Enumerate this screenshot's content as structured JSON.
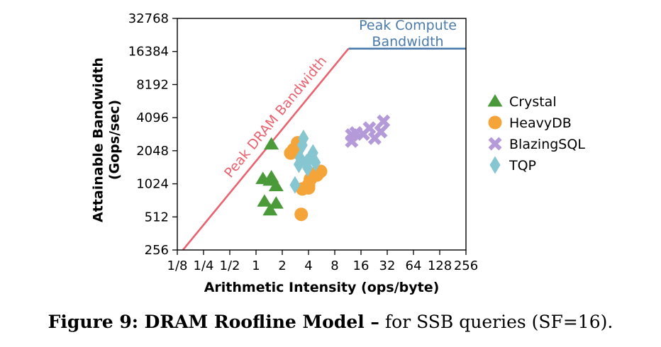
{
  "chart_data": {
    "type": "scatter",
    "xlabel": "Arithmetic Intensity (ops/byte)",
    "ylabel_lines": [
      "Attainable Bandwidth",
      "(Gops/sec)"
    ],
    "x_scale": "log2",
    "y_scale": "log2",
    "xlim": [
      0.125,
      256
    ],
    "ylim": [
      256,
      32768
    ],
    "x_ticks": [
      {
        "value": 0.125,
        "label": "1/8"
      },
      {
        "value": 0.25,
        "label": "1/4"
      },
      {
        "value": 0.5,
        "label": "1/2"
      },
      {
        "value": 1,
        "label": "1"
      },
      {
        "value": 2,
        "label": "2"
      },
      {
        "value": 4,
        "label": "4"
      },
      {
        "value": 8,
        "label": "8"
      },
      {
        "value": 16,
        "label": "16"
      },
      {
        "value": 32,
        "label": "32"
      },
      {
        "value": 64,
        "label": "64"
      },
      {
        "value": 128,
        "label": "128"
      },
      {
        "value": 256,
        "label": "256"
      }
    ],
    "y_ticks": [
      {
        "value": 256,
        "label": "256"
      },
      {
        "value": 512,
        "label": "512"
      },
      {
        "value": 1024,
        "label": "1024"
      },
      {
        "value": 2048,
        "label": "2048"
      },
      {
        "value": 4096,
        "label": "4096"
      },
      {
        "value": 8192,
        "label": "8192"
      },
      {
        "value": 16384,
        "label": "16384"
      },
      {
        "value": 32768,
        "label": "32768"
      }
    ],
    "grid": false,
    "legend_position": "outside-right",
    "lines": [
      {
        "name": "Peak DRAM Bandwidth",
        "color": "#e8636f",
        "points": [
          [
            0.145,
            256
          ],
          [
            11.5,
            17400
          ]
        ]
      },
      {
        "name": "Peak Compute Bandwidth",
        "label_lines": [
          "Peak Compute",
          "Bandwidth"
        ],
        "color": "#4a7aaa",
        "points": [
          [
            11.5,
            17400
          ],
          [
            256,
            17400
          ]
        ]
      }
    ],
    "series": [
      {
        "name": "Crystal",
        "marker": "triangle",
        "color": "#4a9a3a",
        "points": [
          [
            1.5,
            2350
          ],
          [
            1.2,
            1140
          ],
          [
            1.5,
            1180
          ],
          [
            1.45,
            1100
          ],
          [
            1.7,
            980
          ],
          [
            1.25,
            710
          ],
          [
            1.7,
            680
          ],
          [
            1.45,
            590
          ]
        ]
      },
      {
        "name": "HeavyDB",
        "marker": "circle",
        "color": "#f5a43a",
        "points": [
          [
            3.0,
            2420
          ],
          [
            2.7,
            2100
          ],
          [
            2.9,
            2000
          ],
          [
            2.5,
            1950
          ],
          [
            5.5,
            1330
          ],
          [
            4.5,
            1260
          ],
          [
            5.0,
            1230
          ],
          [
            4.2,
            1130
          ],
          [
            4.0,
            1000
          ],
          [
            4.0,
            940
          ],
          [
            3.4,
            920
          ],
          [
            3.3,
            540
          ]
        ]
      },
      {
        "name": "BlazingSQL",
        "marker": "x",
        "color": "#b49ad8",
        "points": [
          [
            29,
            3800
          ],
          [
            20,
            3300
          ],
          [
            27,
            3050
          ],
          [
            14,
            2980
          ],
          [
            17,
            2900
          ],
          [
            12.5,
            2850
          ],
          [
            23,
            2660
          ],
          [
            12.5,
            2500
          ]
        ]
      },
      {
        "name": "TQP",
        "marker": "diamond",
        "color": "#86c6d0",
        "points": [
          [
            3.5,
            2650
          ],
          [
            3.4,
            2300
          ],
          [
            4.5,
            1960
          ],
          [
            4.3,
            1830
          ],
          [
            3.2,
            1760
          ],
          [
            3.8,
            1600
          ],
          [
            3.1,
            1540
          ],
          [
            4.8,
            1600
          ],
          [
            3.9,
            1430
          ],
          [
            2.8,
            1000
          ]
        ]
      }
    ]
  },
  "caption": {
    "bold": "Figure 9: DRAM Roofline Model –",
    "normal": " for SSB queries (SF=16)."
  }
}
